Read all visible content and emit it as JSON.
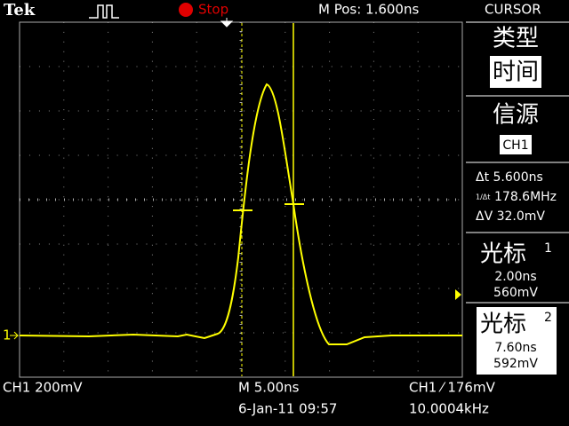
{
  "header": {
    "brand": "Tek",
    "status": "Stop",
    "position": "M Pos: 1.600ns",
    "menu_title": "CURSOR"
  },
  "menu": {
    "type_label": "类型",
    "type_value": "时间",
    "source_label": "信源",
    "source_value": "CH1",
    "delta_t": "Δt 5.600ns",
    "inverse_symbol": "1/Δt",
    "inverse_delta_t": "178.6MHz",
    "delta_v": "ΔV 32.0mV",
    "cursor1": {
      "label": "光标",
      "index": "1",
      "time": "2.00ns",
      "voltage": "560mV"
    },
    "cursor2": {
      "label": "光标",
      "index": "2",
      "time": "7.60ns",
      "voltage": "592mV"
    }
  },
  "screen": {
    "channel_marker": "1"
  },
  "footer": {
    "channel_scale": "CH1 200mV",
    "time_scale": "M 5.00ns",
    "trigger": "CH1 ⁄ 176mV",
    "datetime": "6-Jan-11 09:57",
    "frequency": "10.0004kHz"
  }
}
